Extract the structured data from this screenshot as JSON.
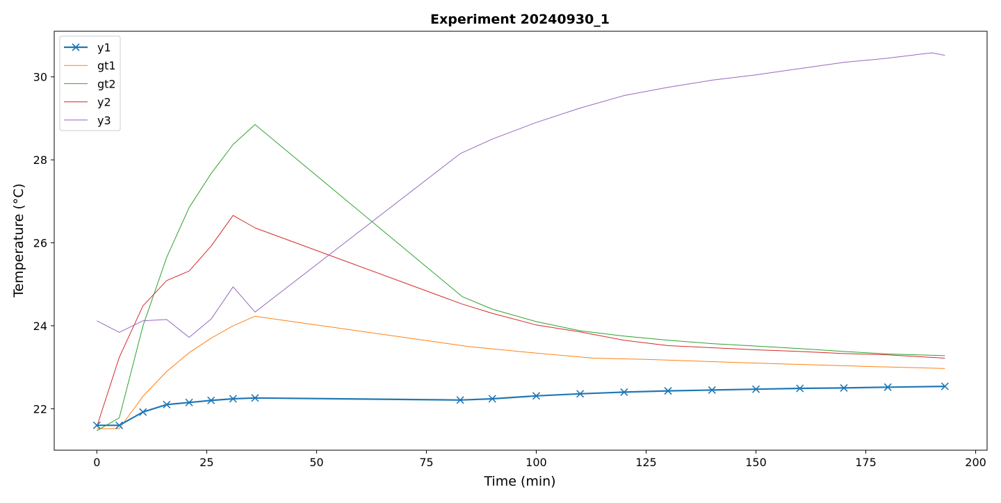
{
  "chart_data": {
    "type": "line",
    "title": "Experiment 20240930_1",
    "xlabel": "Time (min)",
    "ylabel": "Temperature (°C)",
    "xlim": [
      -9.7,
      202.6
    ],
    "ylim": [
      21.0,
      31.1
    ],
    "xticks": [
      0,
      25,
      50,
      75,
      100,
      125,
      150,
      175,
      200
    ],
    "yticks": [
      22,
      24,
      26,
      28,
      30
    ],
    "grid": false,
    "legend_position": "upper-left",
    "series": [
      {
        "name": "y1",
        "color": "#1f77b4",
        "marker": "x",
        "points": [
          [
            0,
            21.6
          ],
          [
            5.1,
            21.6
          ],
          [
            10.5,
            21.92
          ],
          [
            15.9,
            22.1
          ],
          [
            21.0,
            22.15
          ],
          [
            26.0,
            22.2
          ],
          [
            31.0,
            22.24
          ],
          [
            36.0,
            22.26
          ],
          [
            82.7,
            22.21
          ],
          [
            90,
            22.24
          ],
          [
            100,
            22.31
          ],
          [
            110,
            22.36
          ],
          [
            120,
            22.4
          ],
          [
            130,
            22.43
          ],
          [
            140,
            22.45
          ],
          [
            150,
            22.47
          ],
          [
            160,
            22.49
          ],
          [
            170,
            22.5
          ],
          [
            180,
            22.52
          ],
          [
            193,
            22.54
          ]
        ]
      },
      {
        "name": "gt1",
        "color": "#ff7f0e",
        "points": [
          [
            0,
            21.52
          ],
          [
            5.1,
            21.52
          ],
          [
            10.5,
            22.3
          ],
          [
            15.9,
            22.9
          ],
          [
            21.0,
            23.35
          ],
          [
            26.0,
            23.7
          ],
          [
            31.0,
            24.0
          ],
          [
            36.0,
            24.23
          ],
          [
            84.5,
            23.5
          ],
          [
            100,
            23.34
          ],
          [
            113,
            23.22
          ],
          [
            125,
            23.19
          ],
          [
            150,
            23.1
          ],
          [
            175,
            23.02
          ],
          [
            193,
            22.97
          ]
        ]
      },
      {
        "name": "gt2",
        "color": "#2ca02c",
        "points": [
          [
            0,
            21.47
          ],
          [
            5.1,
            21.78
          ],
          [
            10.5,
            24.0
          ],
          [
            15.9,
            25.65
          ],
          [
            21.0,
            26.85
          ],
          [
            26.0,
            27.67
          ],
          [
            31.0,
            28.37
          ],
          [
            36.0,
            28.85
          ],
          [
            83.2,
            24.7
          ],
          [
            90,
            24.4
          ],
          [
            100,
            24.1
          ],
          [
            110,
            23.88
          ],
          [
            120,
            23.75
          ],
          [
            130,
            23.65
          ],
          [
            140,
            23.57
          ],
          [
            150,
            23.51
          ],
          [
            160,
            23.45
          ],
          [
            170,
            23.38
          ],
          [
            180,
            23.32
          ],
          [
            193,
            23.28
          ]
        ]
      },
      {
        "name": "y2",
        "color": "#d62728",
        "points": [
          [
            0,
            21.57
          ],
          [
            5.1,
            23.24
          ],
          [
            10.5,
            24.48
          ],
          [
            15.9,
            25.09
          ],
          [
            21.0,
            25.32
          ],
          [
            26.0,
            25.92
          ],
          [
            31.0,
            26.66
          ],
          [
            36.0,
            26.36
          ],
          [
            83.2,
            24.52
          ],
          [
            90,
            24.3
          ],
          [
            100,
            24.02
          ],
          [
            110,
            23.85
          ],
          [
            120,
            23.65
          ],
          [
            130,
            23.52
          ],
          [
            140,
            23.47
          ],
          [
            150,
            23.42
          ],
          [
            160,
            23.38
          ],
          [
            170,
            23.33
          ],
          [
            180,
            23.3
          ],
          [
            193,
            23.22
          ]
        ]
      },
      {
        "name": "y3",
        "color": "#9467bd",
        "points": [
          [
            0,
            24.12
          ],
          [
            5.1,
            23.84
          ],
          [
            10.5,
            24.12
          ],
          [
            15.9,
            24.15
          ],
          [
            21.0,
            23.72
          ],
          [
            26.0,
            24.16
          ],
          [
            31.0,
            24.94
          ],
          [
            36.0,
            24.33
          ],
          [
            82.7,
            28.15
          ],
          [
            90,
            28.5
          ],
          [
            100,
            28.9
          ],
          [
            110,
            29.25
          ],
          [
            120,
            29.55
          ],
          [
            130,
            29.75
          ],
          [
            140,
            29.92
          ],
          [
            150,
            30.05
          ],
          [
            160,
            30.2
          ],
          [
            170,
            30.35
          ],
          [
            180,
            30.45
          ],
          [
            190,
            30.58
          ],
          [
            193,
            30.52
          ]
        ]
      }
    ]
  }
}
